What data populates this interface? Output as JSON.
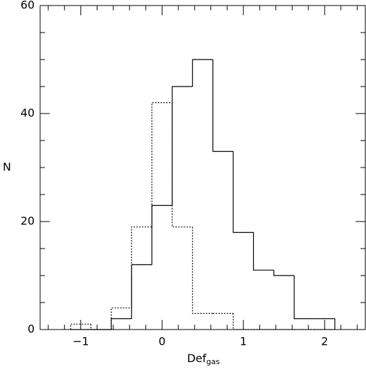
{
  "chart_data": {
    "type": "histogram",
    "xlabel": "Def",
    "xlabel_subscript": "gas",
    "ylabel": "N",
    "bins": [
      -1.125,
      -0.875,
      -0.625,
      -0.375,
      -0.125,
      0.125,
      0.375,
      0.625,
      0.875,
      1.125,
      1.375,
      1.625,
      1.875,
      2.125
    ],
    "series": [
      {
        "color": "#000000",
        "line_style": "solid",
        "values": [
          0,
          0,
          2,
          12,
          23,
          45,
          50,
          33,
          18,
          11,
          10,
          2,
          2
        ]
      },
      {
        "color": "#000000",
        "line_style": "dotted",
        "values": [
          1,
          0,
          4,
          19,
          42,
          19,
          3,
          3,
          0,
          0,
          0,
          0,
          0
        ]
      }
    ],
    "xlim": [
      -1.5,
      2.5
    ],
    "ylim": [
      0,
      60
    ],
    "xticks": [
      {
        "value": -1,
        "label": "−1"
      },
      0,
      1,
      2
    ],
    "yticks": [
      0,
      20,
      40,
      60
    ],
    "xminorticks": [
      -1.4,
      -1.2,
      -0.8,
      -0.6,
      -0.4,
      -0.2,
      0.2,
      0.4,
      0.6,
      0.8,
      1.2,
      1.4,
      1.6,
      1.8,
      2.2,
      2.4
    ],
    "yminorticks": [
      5,
      10,
      15,
      25,
      30,
      35,
      45,
      50,
      55
    ]
  }
}
